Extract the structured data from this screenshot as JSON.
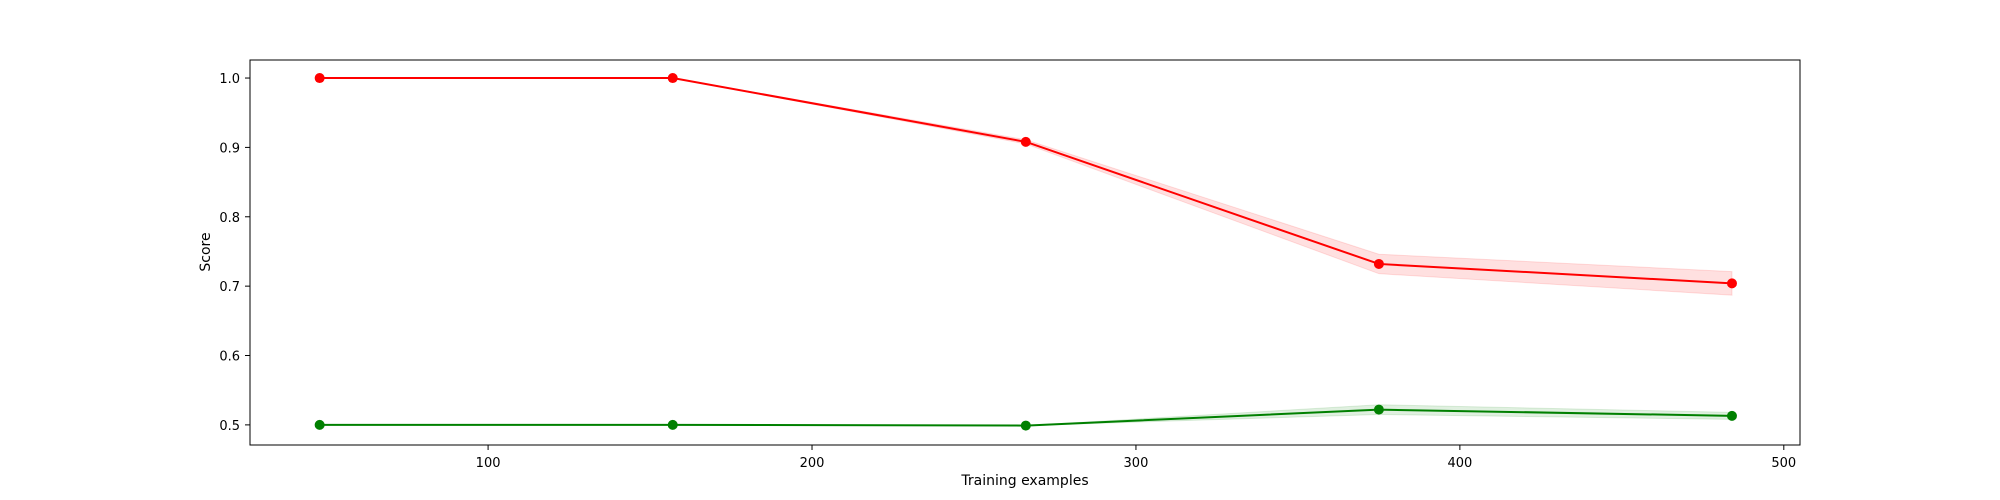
{
  "chart_data": {
    "type": "line",
    "title": "",
    "xlabel": "Training examples",
    "ylabel": "Score",
    "xlim": [
      26.5,
      505
    ],
    "ylim": [
      0.471,
      1.026
    ],
    "xticks": [
      100,
      200,
      300,
      400,
      500
    ],
    "yticks": [
      0.5,
      0.6,
      0.7,
      0.8,
      0.9,
      1.0
    ],
    "grid": false,
    "series": [
      {
        "color": "#ff0000",
        "band_color": "#ff0000",
        "x": [
          48,
          157,
          266,
          375,
          484
        ],
        "values": [
          1.0,
          1.0,
          0.908,
          0.732,
          0.704
        ],
        "band_half_width": [
          0.0,
          0.0,
          0.003,
          0.014,
          0.017
        ]
      },
      {
        "color": "#008000",
        "band_color": "#008000",
        "x": [
          48,
          157,
          266,
          375,
          484
        ],
        "values": [
          0.5,
          0.5,
          0.499,
          0.522,
          0.513
        ],
        "band_half_width": [
          0.0,
          0.0,
          0.0,
          0.007,
          0.005
        ]
      }
    ]
  }
}
